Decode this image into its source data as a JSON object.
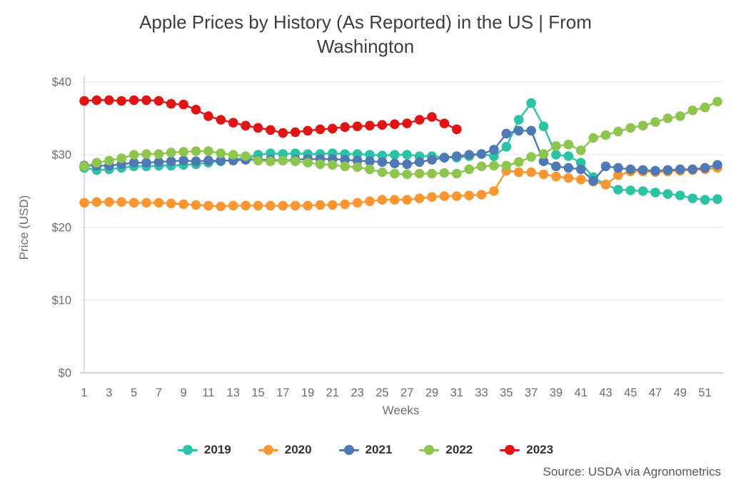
{
  "title_lines": [
    "Apple Prices by History (As Reported) in the US | From",
    "Washington"
  ],
  "source_text": "Source: USDA via Agronometrics",
  "chart_data": {
    "type": "line",
    "title": "Apple Prices by History (As Reported) in the US | From Washington",
    "xlabel": "Weeks",
    "ylabel": "Price (USD)",
    "xlim": [
      1,
      52
    ],
    "ylim": [
      0,
      40
    ],
    "grid": true,
    "legend_position": "bottom",
    "x_ticks": [
      1,
      3,
      5,
      7,
      9,
      11,
      13,
      15,
      17,
      19,
      21,
      23,
      25,
      27,
      29,
      31,
      33,
      35,
      37,
      39,
      41,
      43,
      45,
      47,
      49,
      51
    ],
    "y_tick_values": [
      0,
      10,
      20,
      30,
      40
    ],
    "y_tick_labels": [
      "$0",
      "$10",
      "$20",
      "$30",
      "$40"
    ],
    "x_unit": "week",
    "series": [
      {
        "name": "2019",
        "color": "#2cc3a5",
        "start_week": 1,
        "values": [
          28.2,
          27.9,
          28.0,
          28.2,
          28.4,
          28.4,
          28.5,
          28.5,
          28.6,
          28.7,
          28.9,
          29.1,
          29.3,
          29.6,
          30.0,
          30.2,
          30.1,
          30.2,
          30.1,
          30.1,
          30.2,
          30.1,
          30.1,
          30.0,
          29.9,
          30.0,
          30.0,
          29.8,
          29.8,
          29.6,
          29.6,
          29.8,
          30.1,
          29.8,
          31.1,
          34.8,
          37.1,
          33.9,
          30.0,
          29.8,
          28.9,
          26.9,
          25.9,
          25.2,
          25.1,
          25.0,
          24.8,
          24.6,
          24.4,
          24.0,
          23.8,
          23.9
        ]
      },
      {
        "name": "2020",
        "color": "#fb9632",
        "start_week": 1,
        "values": [
          23.4,
          23.5,
          23.5,
          23.5,
          23.4,
          23.4,
          23.4,
          23.3,
          23.2,
          23.1,
          23.0,
          22.9,
          23.0,
          23.0,
          23.0,
          23.0,
          23.0,
          23.0,
          23.0,
          23.1,
          23.1,
          23.2,
          23.4,
          23.6,
          23.8,
          23.8,
          23.8,
          24.0,
          24.2,
          24.3,
          24.3,
          24.4,
          24.5,
          25.0,
          27.8,
          27.6,
          27.6,
          27.3,
          27.0,
          26.8,
          26.6,
          26.3,
          25.9,
          27.2,
          27.7,
          27.7,
          27.6,
          27.7,
          27.8,
          27.9,
          28.0,
          28.2
        ]
      },
      {
        "name": "2021",
        "color": "#4e79b5",
        "start_week": 1,
        "values": [
          28.5,
          28.5,
          28.5,
          28.7,
          28.9,
          28.9,
          29.0,
          29.1,
          29.2,
          29.1,
          29.2,
          29.2,
          29.2,
          29.3,
          29.3,
          29.3,
          29.2,
          29.3,
          29.4,
          29.4,
          29.4,
          29.3,
          29.2,
          29.1,
          29.0,
          28.8,
          28.7,
          29.0,
          29.3,
          29.6,
          29.8,
          30.0,
          30.1,
          30.7,
          32.9,
          33.3,
          33.3,
          29.1,
          28.4,
          28.2,
          28.0,
          26.4,
          28.4,
          28.2,
          28.0,
          27.9,
          27.8,
          27.9,
          28.0,
          28.0,
          28.2,
          28.6
        ]
      },
      {
        "name": "2022",
        "color": "#8ec54e",
        "start_week": 1,
        "values": [
          28.4,
          28.9,
          29.2,
          29.5,
          30.0,
          30.1,
          30.1,
          30.3,
          30.4,
          30.5,
          30.5,
          30.2,
          30.0,
          29.8,
          29.2,
          29.1,
          29.2,
          29.1,
          28.9,
          28.7,
          28.6,
          28.4,
          28.3,
          28.0,
          27.6,
          27.4,
          27.3,
          27.4,
          27.4,
          27.5,
          27.4,
          28.0,
          28.4,
          28.5,
          28.5,
          29.0,
          29.7,
          30.1,
          31.2,
          31.4,
          30.6,
          32.3,
          32.7,
          33.2,
          33.7,
          34.0,
          34.5,
          35.0,
          35.3,
          36.1,
          36.5,
          37.3
        ]
      },
      {
        "name": "2023",
        "color": "#e11414",
        "start_week": 1,
        "values": [
          37.4,
          37.5,
          37.5,
          37.4,
          37.5,
          37.5,
          37.4,
          37.0,
          36.9,
          36.2,
          35.3,
          34.8,
          34.4,
          34.0,
          33.7,
          33.4,
          33.0,
          33.1,
          33.3,
          33.5,
          33.6,
          33.8,
          33.9,
          34.0,
          34.1,
          34.2,
          34.3,
          34.8,
          35.2,
          34.3,
          33.5
        ]
      }
    ]
  }
}
